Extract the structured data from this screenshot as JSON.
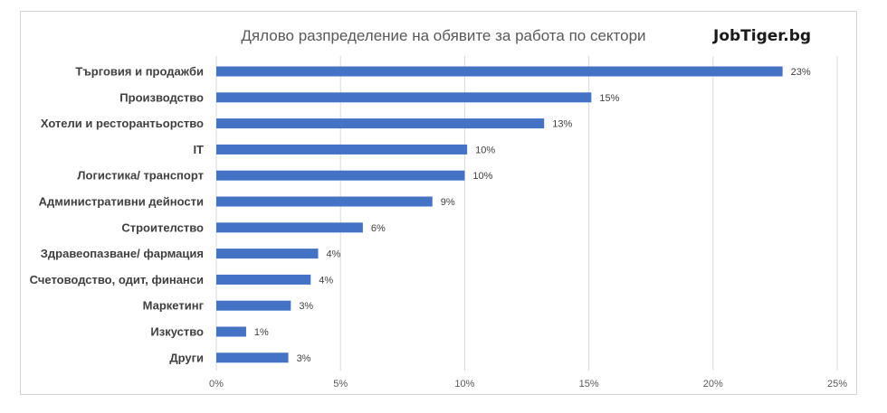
{
  "chart_data": {
    "type": "bar",
    "orientation": "horizontal",
    "title": "Дялово разпределение на обявите за работа по сектори",
    "brand": "JobTiger.bg",
    "categories": [
      "Търговия и продажби",
      "Производство",
      "Хотели и ресторантьорство",
      "IT",
      "Логистика/ транспорт",
      "Административни дейности",
      "Строителство",
      "Здравеопазване/ фармация",
      "Счетоводство, одит, финанси",
      "Маркетинг",
      "Изкуство",
      "Други"
    ],
    "values": [
      22.8,
      15.1,
      13.2,
      10.1,
      10.0,
      8.7,
      5.9,
      4.1,
      3.8,
      3.0,
      1.2,
      2.9
    ],
    "data_labels": [
      "23%",
      "15%",
      "13%",
      "10%",
      "10%",
      "9%",
      "6%",
      "4%",
      "4%",
      "3%",
      "1%",
      "3%"
    ],
    "xlim": [
      0,
      25
    ],
    "xticks": [
      0,
      5,
      10,
      15,
      20,
      25
    ],
    "xtick_labels": [
      "0%",
      "5%",
      "10%",
      "15%",
      "20%",
      "25%"
    ],
    "grid": "vertical",
    "bar_color": "#4472c4",
    "grid_color": "#d9d9d9"
  }
}
